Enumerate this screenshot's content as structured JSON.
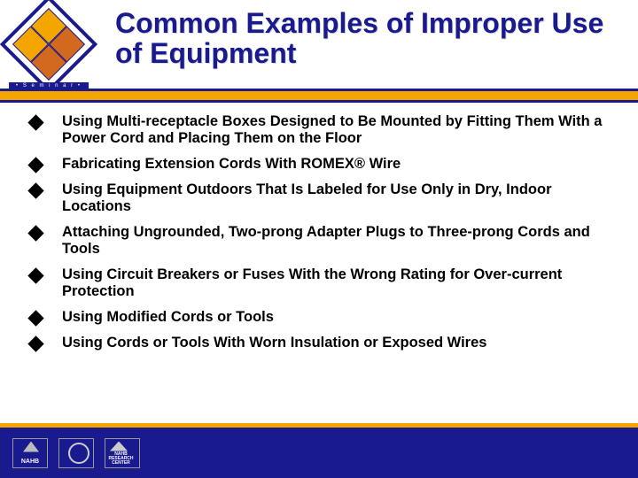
{
  "colors": {
    "navy": "#1a1a8f",
    "gold": "#f4a500",
    "white": "#ffffff",
    "black": "#000000"
  },
  "logo": {
    "seminar_text": "• S e m i n a r •",
    "quadrant_colors": [
      "#f4a500",
      "#d2691e",
      "#f4a500",
      "#d2691e"
    ]
  },
  "title": "Common Examples of Improper Use of Equipment",
  "title_fontsize": 32,
  "bullets": [
    "Using Multi-receptacle Boxes Designed to Be Mounted by Fitting Them With a Power Cord and Placing Them on the Floor",
    "Fabricating Extension Cords With ROMEX® Wire",
    "Using Equipment Outdoors That Is Labeled for Use Only in Dry, Indoor Locations",
    "Attaching Ungrounded, Two-prong Adapter Plugs to Three-prong Cords and Tools",
    "Using Circuit Breakers or Fuses With the Wrong Rating for Over-current Protection",
    "Using Modified Cords or Tools",
    "Using Cords or Tools With Worn Insulation or Exposed Wires"
  ],
  "bullet_fontsize": 16.5,
  "footer_logos": [
    "NAHB",
    "",
    "NAHB RESEARCH CENTER"
  ]
}
